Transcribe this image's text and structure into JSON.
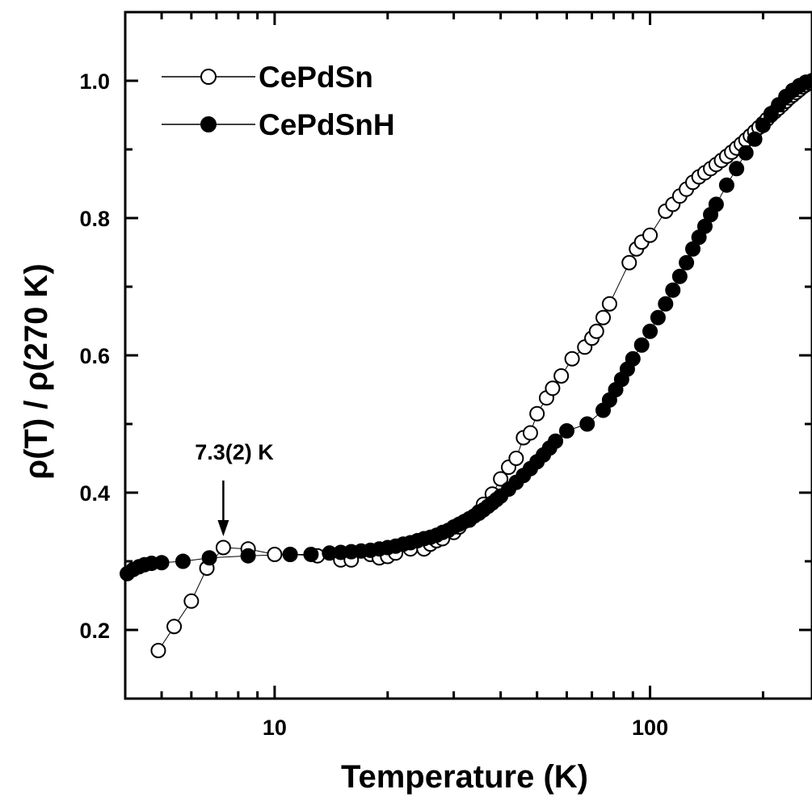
{
  "chart_data": {
    "type": "scatter",
    "title": "",
    "xlabel": "Temperature (K)",
    "ylabel": "ρ(T) / ρ(270 K)",
    "x_scale": "log",
    "xlim": [
      4.0,
      270
    ],
    "ylim": [
      0.1,
      1.1
    ],
    "x_ticks": [
      "10",
      "100"
    ],
    "y_ticks": [
      "0.2",
      "0.4",
      "0.6",
      "0.8",
      "1.0"
    ],
    "grid": false,
    "legend_position": "top-left",
    "series": [
      {
        "name": "CePdSn",
        "marker": "open-circle",
        "color": "#000000",
        "x": [
          4.9,
          5.4,
          6.0,
          6.6,
          7.3,
          8.5,
          10.0,
          11.0,
          13.0,
          15.0,
          16.0,
          18.0,
          19.0,
          20.0,
          21.0,
          23.0,
          25.0,
          26.0,
          27.0,
          28.0,
          30.0,
          31.0,
          33.0,
          35.0,
          36.0,
          38.0,
          40.0,
          42.0,
          44.0,
          46.0,
          48.0,
          50.0,
          53.0,
          55.0,
          58.0,
          62.0,
          67.0,
          70.0,
          72.0,
          75.0,
          78.0,
          88.0,
          92.0,
          95.0,
          100.0,
          110.0,
          115.0,
          120.0,
          125.0,
          130.0,
          135.0,
          140.0,
          145.0,
          150.0,
          155.0,
          160.0,
          165.0,
          170.0,
          175.0,
          180.0,
          185.0,
          190.0,
          195.0,
          200.0,
          205.0,
          210.0,
          215.0,
          220.0,
          225.0,
          230.0,
          235.0,
          240.0,
          245.0,
          250.0,
          255.0,
          260.0,
          265.0,
          270.0
        ],
        "y": [
          0.17,
          0.205,
          0.242,
          0.29,
          0.32,
          0.318,
          0.31,
          0.31,
          0.308,
          0.302,
          0.302,
          0.31,
          0.305,
          0.307,
          0.312,
          0.318,
          0.318,
          0.325,
          0.33,
          0.333,
          0.342,
          0.35,
          0.36,
          0.372,
          0.383,
          0.398,
          0.42,
          0.437,
          0.45,
          0.48,
          0.487,
          0.515,
          0.538,
          0.552,
          0.57,
          0.595,
          0.612,
          0.625,
          0.635,
          0.655,
          0.675,
          0.735,
          0.755,
          0.765,
          0.775,
          0.81,
          0.82,
          0.832,
          0.842,
          0.852,
          0.86,
          0.866,
          0.872,
          0.878,
          0.884,
          0.89,
          0.896,
          0.902,
          0.908,
          0.914,
          0.92,
          0.926,
          0.932,
          0.938,
          0.944,
          0.95,
          0.955,
          0.96,
          0.965,
          0.97,
          0.975,
          0.979,
          0.983,
          0.987,
          0.991,
          0.994,
          0.997,
          1.0
        ]
      },
      {
        "name": "CePdSnH",
        "marker": "filled-circle",
        "color": "#000000",
        "x": [
          4.05,
          4.2,
          4.35,
          4.5,
          4.7,
          5.0,
          5.7,
          6.7,
          8.5,
          11.0,
          12.5,
          14.0,
          15.0,
          16.0,
          17.0,
          18.0,
          19.0,
          20.0,
          21.0,
          22.0,
          23.0,
          24.0,
          25.0,
          26.0,
          27.0,
          28.0,
          29.0,
          30.0,
          31.0,
          32.0,
          33.0,
          34.0,
          35.0,
          36.0,
          37.0,
          38.0,
          39.0,
          40.0,
          42.0,
          44.0,
          46.0,
          48.0,
          50.0,
          52.0,
          54.0,
          56.0,
          60.0,
          68.0,
          75.0,
          78.0,
          81.0,
          84.0,
          87.0,
          90.0,
          95.0,
          100.0,
          105.0,
          110.0,
          115.0,
          120.0,
          125.0,
          130.0,
          135.0,
          140.0,
          145.0,
          150.0,
          160.0,
          170.0,
          180.0,
          190.0,
          200.0,
          210.0,
          220.0,
          230.0,
          240.0,
          250.0,
          260.0,
          270.0
        ],
        "y": [
          0.282,
          0.288,
          0.292,
          0.295,
          0.297,
          0.298,
          0.3,
          0.305,
          0.308,
          0.31,
          0.31,
          0.312,
          0.313,
          0.314,
          0.315,
          0.316,
          0.318,
          0.32,
          0.322,
          0.325,
          0.327,
          0.33,
          0.333,
          0.335,
          0.338,
          0.342,
          0.345,
          0.35,
          0.354,
          0.358,
          0.362,
          0.366,
          0.37,
          0.375,
          0.38,
          0.385,
          0.39,
          0.395,
          0.405,
          0.415,
          0.425,
          0.435,
          0.445,
          0.455,
          0.465,
          0.475,
          0.49,
          0.5,
          0.52,
          0.535,
          0.55,
          0.565,
          0.58,
          0.595,
          0.615,
          0.635,
          0.655,
          0.675,
          0.695,
          0.715,
          0.735,
          0.755,
          0.772,
          0.788,
          0.805,
          0.82,
          0.848,
          0.872,
          0.895,
          0.915,
          0.935,
          0.952,
          0.965,
          0.977,
          0.986,
          0.993,
          0.998,
          1.0
        ]
      }
    ],
    "annotations": [
      {
        "text": "7.3(2) K",
        "x": 7.3,
        "y": 0.32,
        "style": "arrow-down"
      }
    ]
  }
}
